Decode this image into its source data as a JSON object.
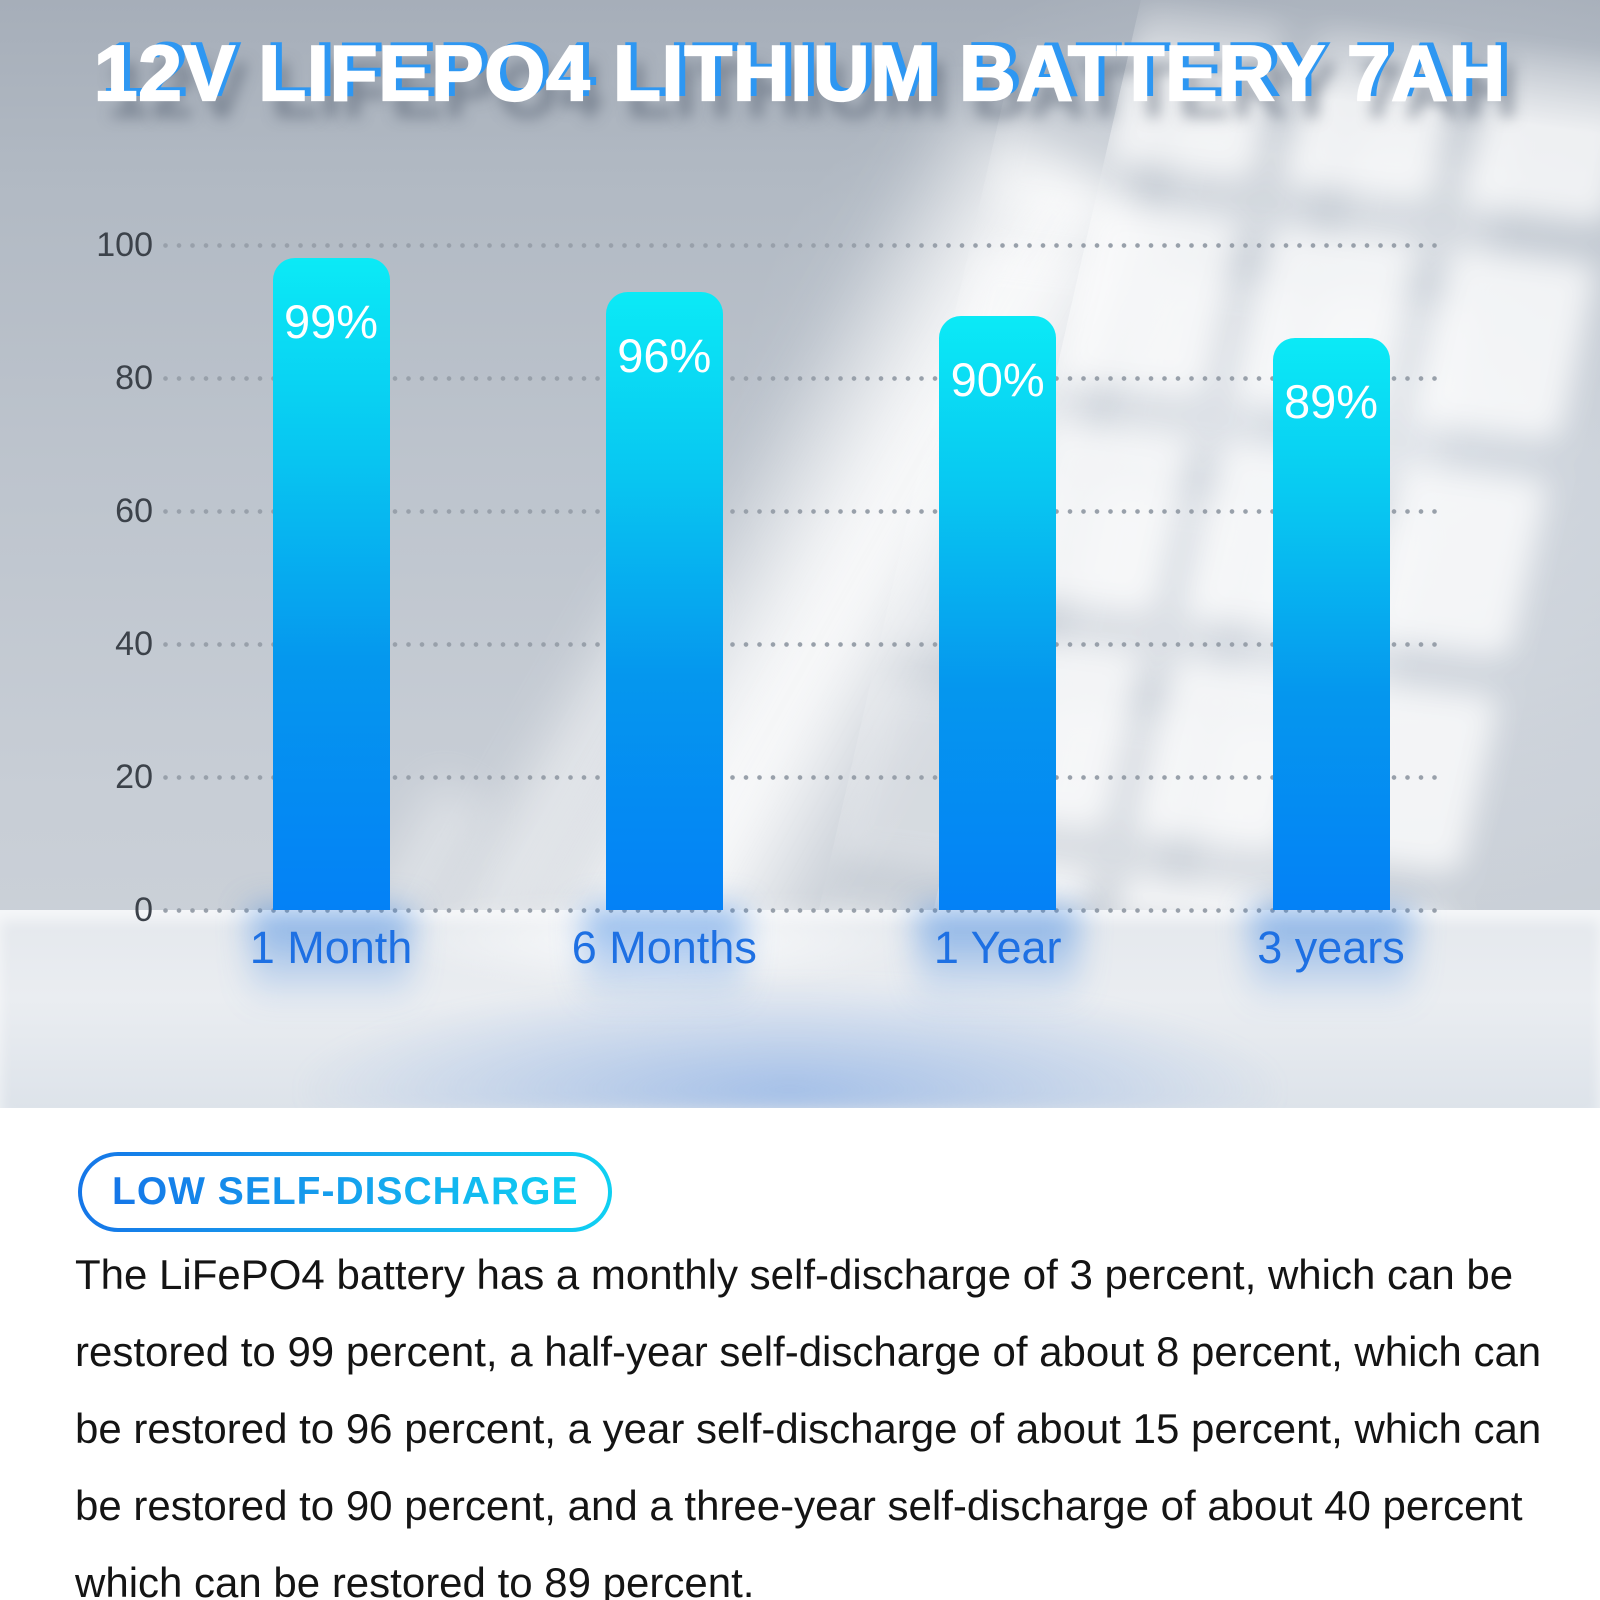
{
  "page": {
    "title": "12V LIFEPO4 LITHIUM BATTERY 7AH"
  },
  "chart_data": {
    "type": "bar",
    "categories": [
      "1 Month",
      "6 Months",
      "1 Year",
      "3 years"
    ],
    "values": [
      99,
      96,
      90,
      89
    ],
    "value_labels": [
      "99%",
      "96%",
      "90%",
      "89%"
    ],
    "title": "",
    "xlabel": "",
    "ylabel": "",
    "ylim": [
      0,
      100
    ],
    "yticks": [
      100,
      80,
      60,
      40,
      20,
      0
    ],
    "grid": "horizontal-dotted",
    "legend": "none",
    "visual_bar_top_values": [
      98,
      93,
      89.3,
      86
    ]
  },
  "badge": {
    "label": "LOW SELF-DISCHARGE"
  },
  "description": "The LiFePO4 battery has a monthly self-discharge of 3 percent, which can be restored to 99 percent, a half-year self-discharge of about 8 percent, which can be restored to 96 percent, a year self-discharge of about 15 percent, which can be restored to 90 percent, and a three-year self-discharge of about 40 percent which can be restored to 89 percent.",
  "colors": {
    "bar_gradient_top": "#0BEAF6",
    "bar_gradient_bottom": "#0481F6",
    "category_label_blue": "#1E70E3",
    "axis_tick_gray": "#3C424A",
    "grid_dot_gray": "#98A0AA",
    "title_text": "#FFFFFF",
    "title_shadow_blue": "#2E97F2",
    "badge_gradient_start": "#1576E8",
    "badge_gradient_end": "#0FD0F2",
    "body_text": "#141414"
  }
}
